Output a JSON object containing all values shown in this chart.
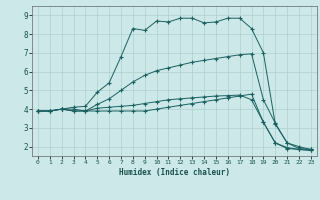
{
  "xlabel": "Humidex (Indice chaleur)",
  "ylabel": "",
  "bg_color": "#cce8e8",
  "grid_color": "#afd0d0",
  "line_color": "#1a6060",
  "xlim": [
    -0.5,
    23.5
  ],
  "ylim": [
    1.5,
    9.5
  ],
  "xticks": [
    0,
    1,
    2,
    3,
    4,
    5,
    6,
    7,
    8,
    9,
    10,
    11,
    12,
    13,
    14,
    15,
    16,
    17,
    18,
    19,
    20,
    21,
    22,
    23
  ],
  "yticks": [
    2,
    3,
    4,
    5,
    6,
    7,
    8,
    9
  ],
  "line1_x": [
    0,
    1,
    2,
    3,
    4,
    5,
    6,
    7,
    8,
    9,
    10,
    11,
    12,
    13,
    14,
    15,
    16,
    17,
    18,
    19,
    20,
    21,
    22,
    23
  ],
  "line1_y": [
    3.9,
    3.9,
    4.0,
    4.0,
    3.9,
    3.9,
    3.9,
    3.9,
    3.9,
    3.9,
    4.0,
    4.1,
    4.2,
    4.3,
    4.4,
    4.5,
    4.6,
    4.7,
    4.8,
    3.3,
    2.2,
    1.95,
    1.85,
    1.8
  ],
  "line2_x": [
    0,
    1,
    2,
    3,
    4,
    5,
    6,
    7,
    8,
    9,
    10,
    11,
    12,
    13,
    14,
    15,
    16,
    17,
    18,
    19,
    20,
    21,
    22,
    23
  ],
  "line2_y": [
    3.9,
    3.9,
    4.0,
    4.1,
    4.15,
    4.9,
    5.4,
    6.8,
    8.3,
    8.2,
    8.7,
    8.65,
    8.85,
    8.85,
    8.6,
    8.65,
    8.85,
    8.85,
    8.3,
    7.0,
    3.2,
    2.2,
    1.9,
    1.85
  ],
  "line3_x": [
    0,
    1,
    2,
    3,
    4,
    5,
    6,
    7,
    8,
    9,
    10,
    11,
    12,
    13,
    14,
    15,
    16,
    17,
    18,
    19,
    20,
    21,
    22,
    23
  ],
  "line3_y": [
    3.9,
    3.9,
    4.0,
    3.9,
    3.9,
    4.25,
    4.55,
    5.0,
    5.45,
    5.8,
    6.05,
    6.2,
    6.35,
    6.5,
    6.6,
    6.7,
    6.8,
    6.9,
    6.95,
    4.5,
    3.25,
    2.2,
    2.0,
    1.85
  ],
  "line4_x": [
    0,
    1,
    2,
    3,
    4,
    5,
    6,
    7,
    8,
    9,
    10,
    11,
    12,
    13,
    14,
    15,
    16,
    17,
    18,
    19,
    20,
    21,
    22,
    23
  ],
  "line4_y": [
    3.9,
    3.9,
    4.0,
    3.9,
    3.9,
    4.05,
    4.1,
    4.15,
    4.2,
    4.3,
    4.4,
    4.5,
    4.55,
    4.6,
    4.65,
    4.7,
    4.72,
    4.75,
    4.5,
    3.3,
    2.2,
    1.9,
    1.85,
    1.8
  ]
}
